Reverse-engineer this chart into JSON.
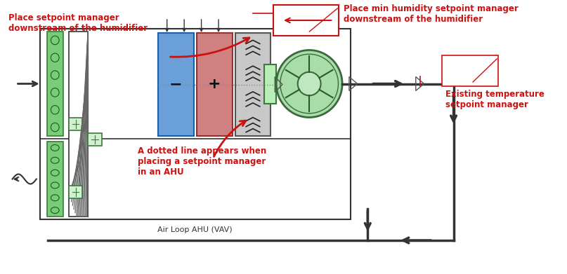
{
  "bg": "#ffffff",
  "red": "#cc1111",
  "dark": "#333333",
  "ge": "#3a7a3a",
  "gf": "#7acc7a",
  "gl": "#b8eeb8",
  "fan_edge": "#4a8a4a",
  "fan_fill": "#a8dca8",
  "blue_coil_edge": "#1a5fa8",
  "blue_coil_fill": "#6a9fd8",
  "red_coil_edge": "#993030",
  "red_coil_fill": "#d08080",
  "hum_fill": "#c8c8c8",
  "hatch_fill": "#e8e8e8",
  "text_sp1": "Place setpoint manager\ndownstream of the humidifier",
  "text_hum": "Place min humidity setpoint manager\ndownstream of the humidifier",
  "text_temp": "Existing temperature\nsetpoint manager",
  "text_dot": "A dotted line appears when\nplacing a setpoint manager\nin an AHU",
  "ahu_label": "Air Loop AHU (VAV)"
}
